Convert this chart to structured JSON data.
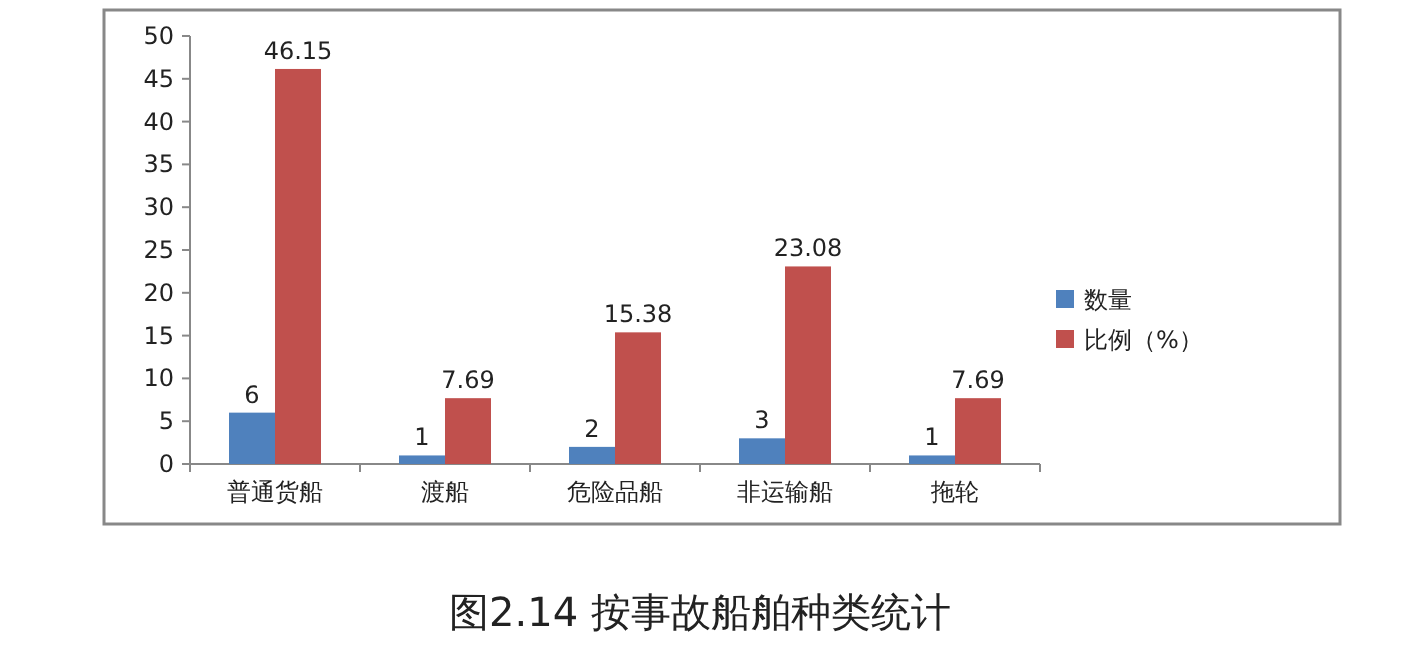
{
  "chart_data": {
    "type": "bar",
    "title": "图2.14 按事故船舶种类统计",
    "categories": [
      "普通货船",
      "渡船",
      "危险品船",
      "非运输船",
      "拖轮"
    ],
    "series": [
      {
        "name": "数量",
        "color": "#4f81bd",
        "values": [
          6,
          1,
          2,
          3,
          1
        ]
      },
      {
        "name": "比例（%）",
        "color": "#c0504d",
        "values": [
          46.15,
          7.69,
          15.38,
          23.08,
          7.69
        ]
      }
    ],
    "ylim": [
      0,
      50
    ],
    "yticks": [
      0,
      5,
      10,
      15,
      20,
      25,
      30,
      35,
      40,
      45,
      50
    ],
    "data_labels": true,
    "legend": "right",
    "grid": false
  }
}
